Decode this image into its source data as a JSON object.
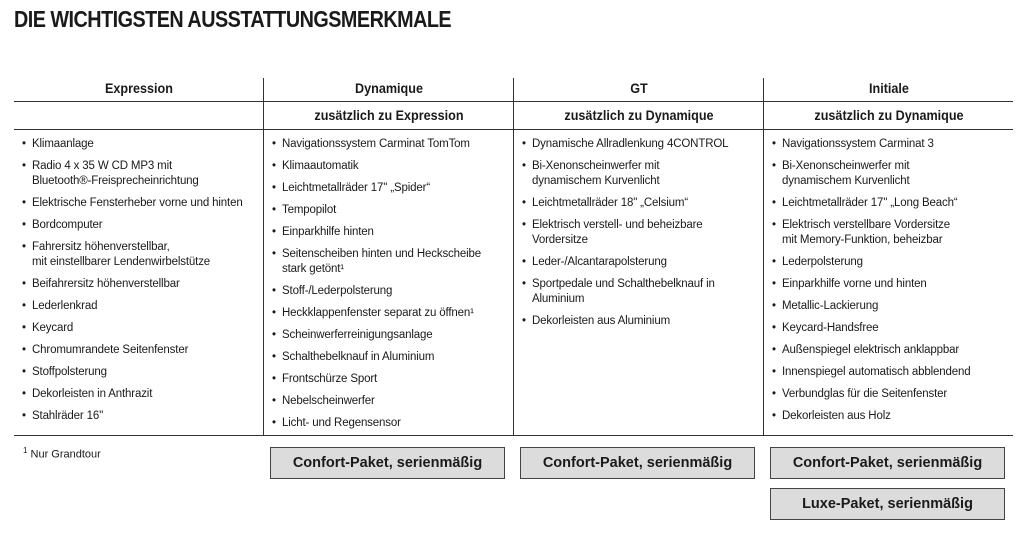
{
  "title": "DIE WICHTIGSTEN AUSSTATTUNGSMERKMALE",
  "columns": [
    {
      "name": "Expression",
      "subtitle": "",
      "items": [
        "Klimaanlage",
        "Radio 4 x 35 W CD MP3 mit\nBluetooth®-Freisprecheinrichtung",
        "Elektrische Fensterheber vorne und hinten",
        "Bordcomputer",
        "Fahrersitz höhenverstellbar,\nmit einstellbarer Lendenwirbelstütze",
        "Beifahrersitz höhenverstellbar",
        "Lederlenkrad",
        "Keycard",
        "Chromumrandete Seitenfenster",
        "Stoffpolsterung",
        "Dekorleisten in Anthrazit",
        "Stahlräder 16''"
      ]
    },
    {
      "name": "Dynamique",
      "subtitle": "zusätzlich zu Expression",
      "items": [
        "Navigationssystem Carminat TomTom",
        "Klimaautomatik",
        "Leichtmetallräder 17'' „Spider“",
        "Tempopilot",
        "Einparkhilfe hinten",
        "Seitenscheiben hinten und Heckscheibe\nstark getönt¹",
        "Stoff-/Lederpolsterung",
        "Heckklappenfenster separat zu öffnen¹",
        "Scheinwerferreinigungsanlage",
        "Schalthebelknauf in Aluminium",
        "Frontschürze Sport",
        "Nebelscheinwerfer",
        "Licht- und Regensensor"
      ]
    },
    {
      "name": "GT",
      "subtitle": "zusätzlich zu Dynamique",
      "items": [
        "Dynamische Allradlenkung 4CONTROL",
        "Bi-Xenonscheinwerfer mit\ndynamischem Kurvenlicht",
        "Leichtmetallräder 18\" „Celsium“",
        "Elektrisch verstell- und beheizbare\nVordersitze",
        "Leder-/Alcantarapolsterung",
        "Sportpedale und Schalthebelknauf in\nAluminium",
        "Dekorleisten aus Aluminium"
      ]
    },
    {
      "name": "Initiale",
      "subtitle": "zusätzlich zu Dynamique",
      "items": [
        "Navigationssystem Carminat 3",
        "Bi-Xenonscheinwerfer mit\ndynamischem Kurvenlicht",
        "Leichtmetallräder 17'' „Long Beach“",
        "Elektrisch verstellbare Vordersitze\nmit Memory-Funktion, beheizbar",
        "Lederpolsterung",
        "Einparkhilfe vorne und hinten",
        "Metallic-Lackierung",
        "Keycard-Handsfree",
        "Außenspiegel elektrisch anklappbar",
        "Innenspiegel automatisch abblendend",
        "Verbundglas für die Seitenfenster",
        "Dekorleisten aus Holz"
      ]
    }
  ],
  "footnote": {
    "marker": "1",
    "text": "Nur Grandtour"
  },
  "packages": {
    "dynamique": "Confort-Paket, serienmäßig",
    "gt": "Confort-Paket, serienmäßig",
    "initiale": "Confort-Paket, serienmäßig",
    "initiale_luxe": "Luxe-Paket, serienmäßig"
  }
}
